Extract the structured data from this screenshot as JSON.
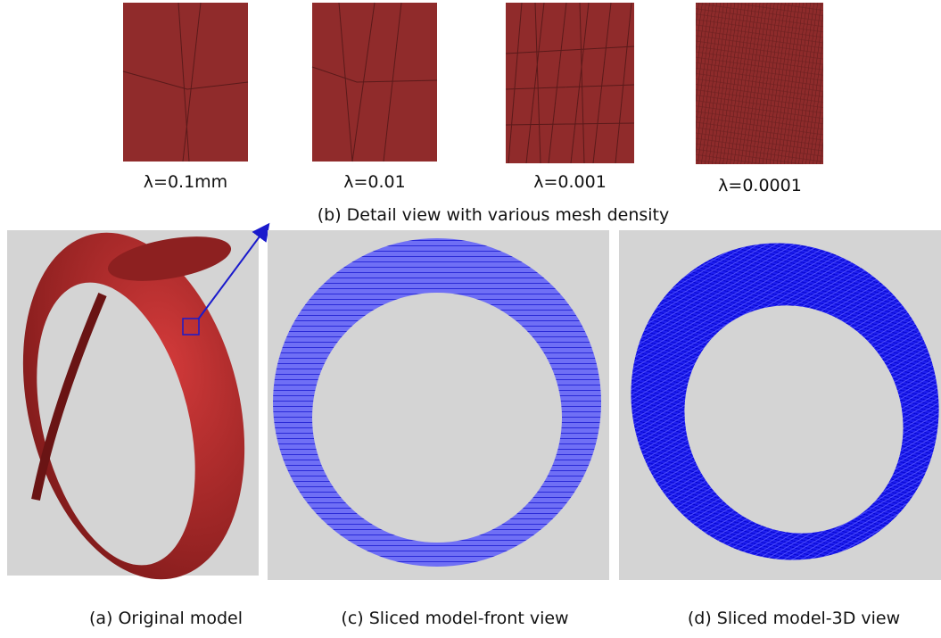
{
  "detail_views": [
    {
      "label": "λ=0.1mm"
    },
    {
      "label": "λ=0.01"
    },
    {
      "label": "λ=0.001"
    },
    {
      "label": "λ=0.0001"
    }
  ],
  "detail_caption": "(b) Detail view with various mesh density",
  "panels": [
    {
      "caption": "(a) Original model"
    },
    {
      "caption": "(c) Sliced model-front view"
    },
    {
      "caption": "(d) Sliced model-3D view"
    }
  ]
}
